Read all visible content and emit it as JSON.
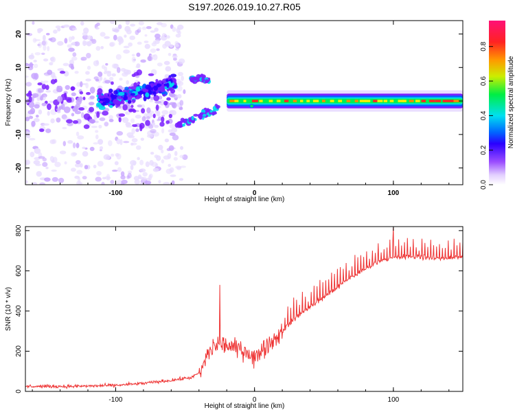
{
  "title": "S197.2026.019.10.27.R05",
  "charts": [
    {
      "type": "heatmap",
      "xlabel": "Height of straight line (km)",
      "ylabel": "Frequency (Hz)",
      "xlim": [
        -165,
        150
      ],
      "ylim": [
        -25,
        24
      ],
      "x_ticks": [
        -100,
        0,
        100
      ],
      "y_ticks": [
        -20,
        -10,
        0,
        10,
        20
      ],
      "colorbar": {
        "label": "Normalized spectral amplitude",
        "range": [
          0,
          0.95
        ],
        "ticks": [
          0.0,
          0.2,
          0.4,
          0.6,
          0.8
        ]
      },
      "ridge_segments": [
        {
          "name": "sparse-start",
          "x": [
            -165,
            -105
          ],
          "freq": 0,
          "scatter_hz": 14,
          "density": "low"
        },
        {
          "name": "rising-track",
          "x": [
            -110,
            -60
          ],
          "freq": [
            0,
            5
          ],
          "scatter_hz": 4
        },
        {
          "name": "upper-track",
          "x": [
            -45,
            -30
          ],
          "freq": [
            7,
            8
          ]
        },
        {
          "name": "lower-track",
          "x": [
            -55,
            -25
          ],
          "freq": [
            -7,
            -2
          ]
        },
        {
          "name": "stable-ridge",
          "x": [
            -20,
            150
          ],
          "freq": 0,
          "peak": 0.9
        }
      ]
    },
    {
      "type": "line",
      "xlabel": "Height of straight line (km)",
      "ylabel": "SNR (10 * v/v)",
      "xlim": [
        -165,
        150
      ],
      "ylim": [
        0,
        820
      ],
      "x_ticks": [
        -100,
        0,
        100
      ],
      "y_ticks": [
        0,
        200,
        400,
        600,
        800
      ],
      "series": [
        {
          "name": "SNR",
          "color": "#ee3333",
          "x": [
            -165,
            -130,
            -100,
            -80,
            -60,
            -45,
            -38,
            -35,
            -30,
            -25,
            -20,
            -15,
            -10,
            -5,
            0,
            5,
            10,
            15,
            20,
            30,
            40,
            50,
            60,
            70,
            80,
            90,
            100,
            110,
            120,
            130,
            140,
            150
          ],
          "y": [
            25,
            25,
            30,
            40,
            55,
            70,
            100,
            170,
            220,
            240,
            230,
            215,
            210,
            200,
            160,
            210,
            235,
            265,
            300,
            370,
            420,
            470,
            520,
            570,
            610,
            650,
            665,
            670,
            670,
            660,
            665,
            670
          ],
          "spikes": [
            {
              "x": -25,
              "y": 530
            },
            {
              "x": 100,
              "y": 815
            }
          ]
        }
      ]
    }
  ],
  "styles": {
    "heat_colors": [
      "#ffffff",
      "#e8dcff",
      "#c8a6ff",
      "#7a1fff",
      "#2a00ff",
      "#0066ff",
      "#00ddee",
      "#00ee55",
      "#aaee00",
      "#ffee00",
      "#ff8800",
      "#ff2222",
      "#ff1177"
    ],
    "snr_color": "#ee3333"
  }
}
